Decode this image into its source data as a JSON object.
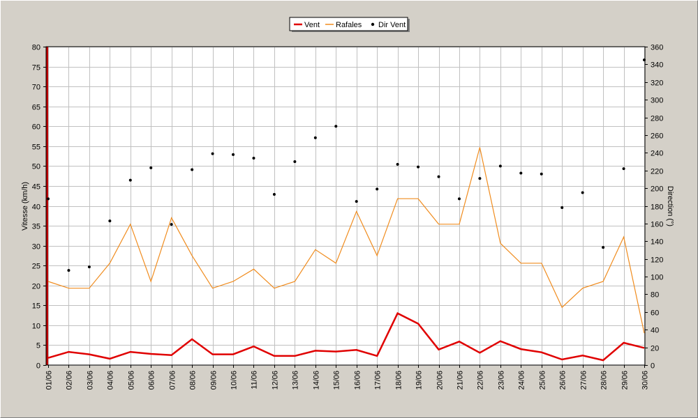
{
  "chart_data": {
    "type": "line",
    "categories": [
      "01/06",
      "02/06",
      "03/06",
      "04/06",
      "05/06",
      "06/06",
      "07/06",
      "08/06",
      "09/06",
      "10/06",
      "11/06",
      "12/06",
      "13/06",
      "14/06",
      "15/06",
      "16/06",
      "17/06",
      "18/06",
      "19/06",
      "20/06",
      "21/06",
      "22/06",
      "23/06",
      "24/06",
      "25/06",
      "26/06",
      "27/06",
      "28/06",
      "29/06",
      "30/06"
    ],
    "ylabel": "Vitesse (km/h)",
    "y2label": "Direction (°)",
    "ylim": [
      0,
      80
    ],
    "y2lim": [
      0,
      360
    ],
    "yticks": [
      0,
      5,
      10,
      15,
      20,
      25,
      30,
      35,
      40,
      45,
      50,
      55,
      60,
      65,
      70,
      75,
      80
    ],
    "y2ticks": [
      0,
      20,
      40,
      60,
      80,
      100,
      120,
      140,
      160,
      180,
      200,
      220,
      240,
      260,
      280,
      300,
      320,
      340,
      360
    ],
    "grid": true,
    "legend_position": "top-center",
    "series": [
      {
        "name": "Vent",
        "color": "#e00000",
        "axis": "left",
        "style": "line",
        "values": [
          1.8,
          3.3,
          2.7,
          1.6,
          3.3,
          2.8,
          2.5,
          6.5,
          2.7,
          2.7,
          4.7,
          2.3,
          2.3,
          3.6,
          3.4,
          3.8,
          2.3,
          13.0,
          10.4,
          3.9,
          5.9,
          3.1,
          6.0,
          4.0,
          3.2,
          1.4,
          2.4,
          1.2,
          5.6,
          4.3
        ]
      },
      {
        "name": "Rafales",
        "color": "#f08c1e",
        "axis": "left",
        "style": "line",
        "values": [
          21,
          19.3,
          19.3,
          25.6,
          35.4,
          21,
          37,
          27.5,
          19.3,
          21,
          24.1,
          19.3,
          21,
          29,
          25.6,
          38.6,
          27.5,
          41.8,
          41.8,
          35.4,
          35.4,
          54.7,
          30.6,
          25.6,
          25.6,
          14.5,
          19.3,
          21,
          32.2,
          8
        ]
      },
      {
        "name": "Dir Vent",
        "color": "#000000",
        "axis": "right",
        "style": "points",
        "values": [
          188,
          107,
          111,
          163,
          209,
          223,
          159,
          221,
          239,
          238,
          234,
          193,
          230,
          257,
          270,
          185,
          199,
          227,
          224,
          213,
          188,
          211,
          225,
          217,
          216,
          178,
          195,
          133,
          222,
          345
        ]
      }
    ]
  }
}
